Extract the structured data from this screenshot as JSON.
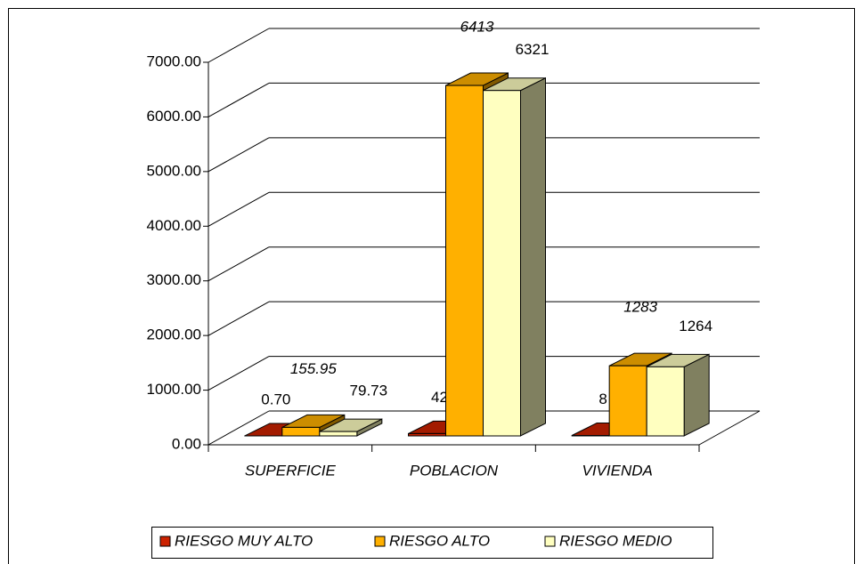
{
  "chart_data": {
    "type": "bar3d",
    "categories": [
      "SUPERFICIE",
      "POBLACION",
      "VIVIENDA"
    ],
    "series": [
      {
        "name": "RIESGO MUY ALTO",
        "color": "#cc2200",
        "values": [
          0.7,
          42,
          8
        ],
        "value_labels": [
          "0.70",
          "42",
          "8"
        ]
      },
      {
        "name": "RIESGO ALTO",
        "color": "#ffb000",
        "values": [
          155.95,
          6413,
          1283
        ],
        "value_labels": [
          "155.95",
          "6413",
          "1283"
        ]
      },
      {
        "name": "RIESGO MEDIO",
        "color": "#ffffc0",
        "values": [
          79.73,
          6321,
          1264
        ],
        "value_labels": [
          "79.73",
          "6321",
          "1264"
        ]
      }
    ],
    "ylim": [
      0,
      7000
    ],
    "yticks": [
      {
        "value": 0,
        "label": "0.00"
      },
      {
        "value": 1000,
        "label": "1000.00"
      },
      {
        "value": 2000,
        "label": "2000.00"
      },
      {
        "value": 3000,
        "label": "3000.00"
      },
      {
        "value": 4000,
        "label": "4000.00"
      },
      {
        "value": 5000,
        "label": "5000.00"
      },
      {
        "value": 6000,
        "label": "6000.00"
      },
      {
        "value": 7000,
        "label": "7000.00"
      }
    ],
    "grid": true,
    "legend": "bottom"
  }
}
